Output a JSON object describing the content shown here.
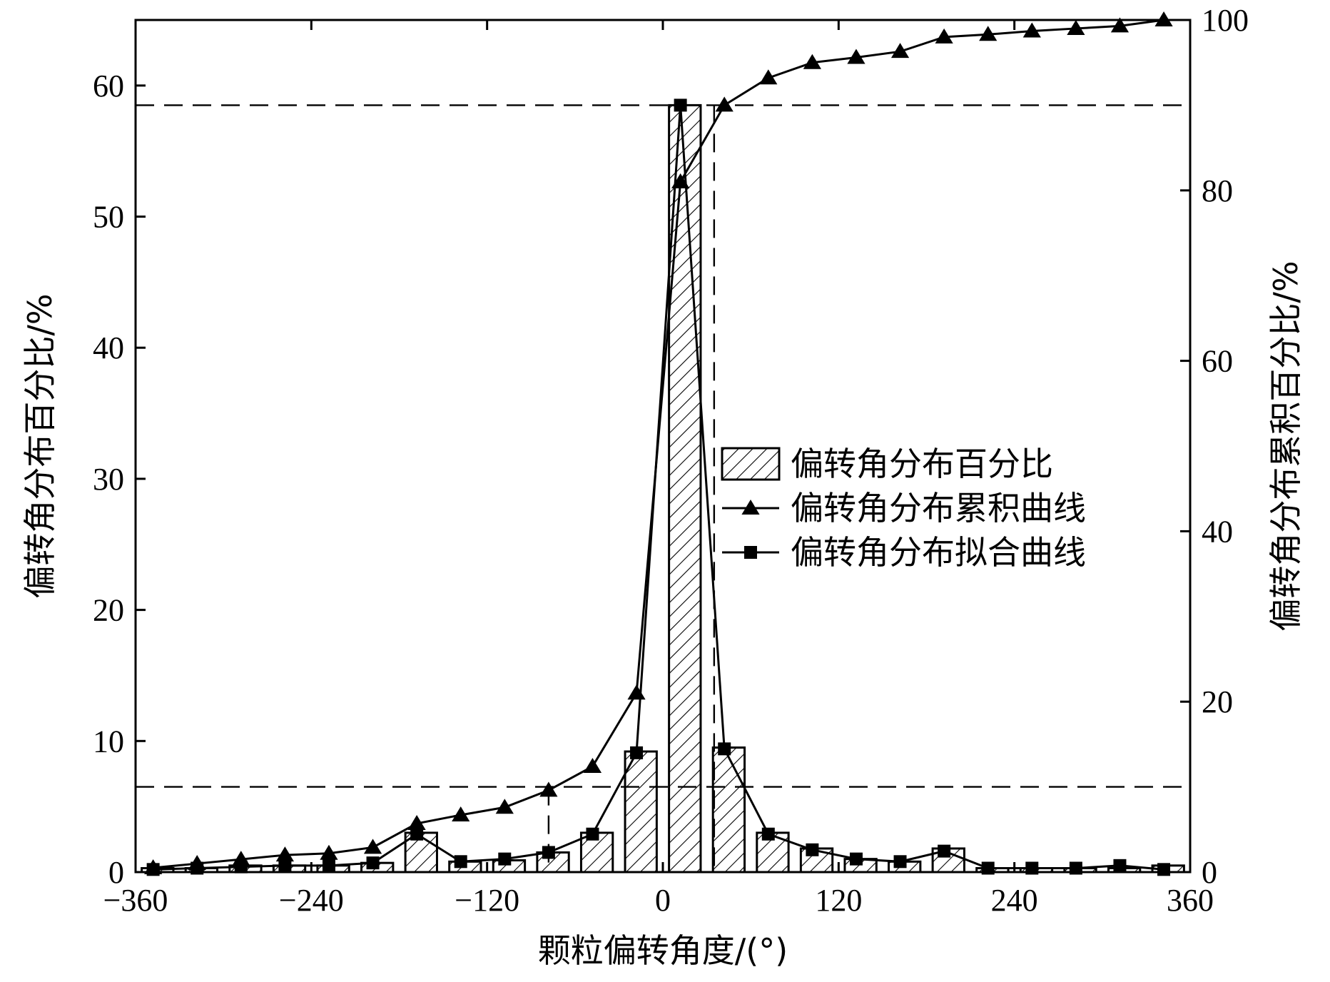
{
  "chart_data": {
    "type": "bar",
    "xlabel": "颗粒偏转角度/(°)",
    "ylabel_left": "偏转角分布百分比/%",
    "ylabel_right": "偏转角分布累积百分比/%",
    "xlim": [
      -360,
      360
    ],
    "ylim_left": [
      0,
      65
    ],
    "ylim_right": [
      0,
      100
    ],
    "x_ticks": [
      -360,
      -240,
      -120,
      0,
      120,
      240,
      360
    ],
    "x_tick_labels": [
      "−360",
      "−240",
      "−120",
      "0",
      "120",
      "240",
      "360"
    ],
    "y_left_ticks": [
      0,
      10,
      20,
      30,
      40,
      50,
      60
    ],
    "y_left_tick_labels": [
      "0",
      "10",
      "20",
      "30",
      "40",
      "50",
      "60"
    ],
    "y_right_ticks": [
      0,
      20,
      40,
      60,
      80,
      100
    ],
    "y_right_tick_labels": [
      "0",
      "20",
      "40",
      "60",
      "80",
      "100"
    ],
    "grid": false,
    "legend_position": "center-right",
    "bar_series": {
      "name": "偏转角分布百分比",
      "axis": "left",
      "x": [
        -345,
        -315,
        -285,
        -255,
        -225,
        -195,
        -165,
        -135,
        -105,
        -75,
        -45,
        -15,
        15,
        45,
        75,
        105,
        135,
        165,
        195,
        225,
        255,
        285,
        315,
        345
      ],
      "values": [
        0.3,
        0.3,
        0.5,
        0.5,
        0.5,
        0.7,
        3.0,
        0.8,
        0.9,
        1.5,
        3.0,
        9.2,
        58.5,
        9.5,
        3.0,
        1.8,
        1.0,
        0.8,
        1.8,
        0.3,
        0.3,
        0.3,
        0.3,
        0.5
      ]
    },
    "cumulative_series": {
      "name": "偏转角分布累积曲线",
      "axis": "right",
      "marker": "triangle",
      "x": [
        -348,
        -318,
        -288,
        -258,
        -228,
        -198,
        -168,
        -138,
        -108,
        -78,
        -48,
        -18,
        12,
        42,
        72,
        102,
        132,
        162,
        192,
        222,
        252,
        282,
        312,
        342
      ],
      "values": [
        0.5,
        1.0,
        1.5,
        2.0,
        2.2,
        2.9,
        5.7,
        6.7,
        7.6,
        9.6,
        12.4,
        21.0,
        81.0,
        90.0,
        93.2,
        95.0,
        95.6,
        96.3,
        98.0,
        98.3,
        98.7,
        99.0,
        99.3,
        100.0
      ]
    },
    "fit_series": {
      "name": "偏转角分布拟合曲线",
      "axis": "left",
      "marker": "square",
      "x": [
        -348,
        -318,
        -288,
        -258,
        -228,
        -198,
        -168,
        -138,
        -108,
        -78,
        -48,
        -18,
        12,
        42,
        72,
        102,
        132,
        162,
        192,
        222,
        252,
        282,
        312,
        342
      ],
      "values": [
        0.2,
        0.3,
        0.4,
        0.5,
        0.5,
        0.7,
        2.9,
        0.8,
        1.0,
        1.5,
        2.9,
        9.1,
        58.5,
        9.4,
        2.9,
        1.7,
        1.0,
        0.8,
        1.6,
        0.3,
        0.3,
        0.3,
        0.5,
        0.2
      ]
    },
    "reference_lines": {
      "horizontal_right": [
        10,
        90
      ],
      "vertical_x": [
        -78,
        35
      ]
    }
  }
}
